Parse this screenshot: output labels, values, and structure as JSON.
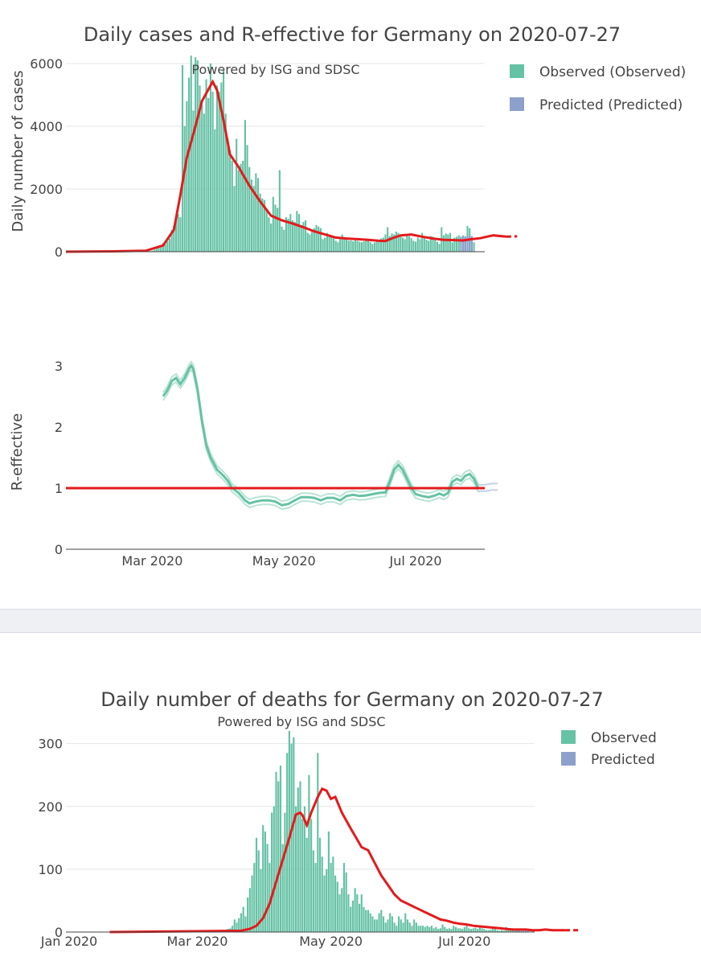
{
  "colors": {
    "observed": "#66c2a5",
    "predicted": "#8da0cb",
    "trend": "#e41a1c",
    "text": "#444444",
    "grid": "#e5e5e5"
  },
  "chart_data": [
    {
      "id": "cases",
      "type": "bar",
      "title": "Daily cases and R-effective for Germany on 2020-07-27",
      "annotation": "Powered by ISG and SDSC",
      "ylabel": "Daily number of cases",
      "ylim": [
        0,
        6000
      ],
      "yticks": [
        "0",
        "2000",
        "4000",
        "6000"
      ],
      "ytick_values": [
        0,
        2000,
        4000,
        6000
      ],
      "x_start": "2020-01-21",
      "x_end": "2020-08-02",
      "legend": [
        {
          "label": "Observed (Observed)",
          "color_key": "observed"
        },
        {
          "label": "Predicted (Predicted)",
          "color_key": "predicted"
        }
      ],
      "observed_start": "2020-01-27",
      "observed": [
        1,
        0,
        1,
        0,
        0,
        0,
        1,
        1,
        0,
        1,
        0,
        0,
        0,
        1,
        0,
        0,
        1,
        0,
        0,
        0,
        0,
        0,
        0,
        0,
        0,
        1,
        0,
        1,
        2,
        3,
        5,
        8,
        12,
        20,
        35,
        60,
        110,
        160,
        200,
        280,
        230,
        330,
        420,
        700,
        820,
        1050,
        1200,
        1100,
        5950,
        4000,
        4800,
        5550,
        6250,
        4500,
        6200,
        6100,
        5300,
        4700,
        4400,
        5500,
        4900,
        6000,
        5100,
        3900,
        5300,
        5100,
        5400,
        5800,
        4400,
        3600,
        3200,
        2900,
        2100,
        3600,
        2600,
        2800,
        2900,
        4200,
        3400,
        2700,
        2300,
        2100,
        2500,
        2350,
        1850,
        1700,
        1650,
        1300,
        1100,
        900,
        1750,
        1500,
        1400,
        2600,
        800,
        700,
        1100,
        1050,
        1200,
        1000,
        950,
        1300,
        1200,
        850,
        950,
        1000,
        600,
        550,
        680,
        750,
        850,
        800,
        750,
        400,
        450,
        600,
        500,
        500,
        450,
        350,
        300,
        400,
        550,
        450,
        400,
        350,
        360,
        330,
        380,
        350,
        320,
        300,
        330,
        380,
        410,
        310,
        250,
        300,
        370,
        380,
        420,
        450,
        550,
        780,
        500,
        580,
        550,
        640,
        600,
        500,
        450,
        400,
        500,
        490,
        430,
        350,
        320,
        450,
        400,
        600,
        500,
        380,
        350,
        500,
        480,
        410,
        320,
        250,
        780,
        520,
        580,
        550,
        600,
        300,
        450,
        480,
        520,
        470,
        520,
        480,
        820,
        750,
        450,
        300
      ],
      "predicted_start": "2020-07-22",
      "predicted": [
        480,
        480,
        490,
        500,
        500,
        500
      ],
      "trend": [
        [
          0,
          0
        ],
        [
          20,
          10
        ],
        [
          37,
          30
        ],
        [
          45,
          200
        ],
        [
          50,
          700
        ],
        [
          53,
          1800
        ],
        [
          56,
          3000
        ],
        [
          60,
          4000
        ],
        [
          63,
          4800
        ],
        [
          67,
          5300
        ],
        [
          68,
          5420
        ],
        [
          70,
          5150
        ],
        [
          73,
          4200
        ],
        [
          76,
          3100
        ],
        [
          80,
          2700
        ],
        [
          85,
          2100
        ],
        [
          90,
          1600
        ],
        [
          95,
          1150
        ],
        [
          100,
          1000
        ],
        [
          105,
          900
        ],
        [
          110,
          780
        ],
        [
          115,
          650
        ],
        [
          120,
          550
        ],
        [
          125,
          450
        ],
        [
          130,
          420
        ],
        [
          135,
          400
        ],
        [
          140,
          380
        ],
        [
          145,
          350
        ],
        [
          148,
          340
        ],
        [
          152,
          450
        ],
        [
          155,
          520
        ],
        [
          160,
          550
        ],
        [
          165,
          480
        ],
        [
          170,
          420
        ],
        [
          175,
          380
        ],
        [
          180,
          370
        ],
        [
          184,
          360
        ],
        [
          188,
          400
        ],
        [
          192,
          430
        ],
        [
          195,
          480
        ],
        [
          198,
          520
        ],
        [
          201,
          500
        ],
        [
          204,
          480
        ]
      ],
      "trend_dashed": [
        [
          204,
          480
        ],
        [
          209,
          490
        ]
      ]
    },
    {
      "id": "reff",
      "type": "line",
      "ylabel": "R-effective",
      "ylim": [
        0,
        3.3
      ],
      "yticks": [
        "0",
        "1",
        "2",
        "3"
      ],
      "ytick_values": [
        0,
        1,
        2,
        3
      ],
      "xticks": [
        "Mar 2020",
        "May 2020",
        "Jul 2020"
      ],
      "xtick_dates": [
        "2020-03-01",
        "2020-05-01",
        "2020-07-01"
      ],
      "x_start": "2020-01-21",
      "x_end": "2020-08-02",
      "reference_line": 1,
      "observed": [
        [
          45,
          2.5
        ],
        [
          47,
          2.6
        ],
        [
          49,
          2.75
        ],
        [
          51,
          2.8
        ],
        [
          53,
          2.7
        ],
        [
          55,
          2.8
        ],
        [
          57,
          2.95
        ],
        [
          58,
          3.0
        ],
        [
          59,
          2.95
        ],
        [
          61,
          2.6
        ],
        [
          63,
          2.1
        ],
        [
          65,
          1.7
        ],
        [
          67,
          1.5
        ],
        [
          70,
          1.3
        ],
        [
          73,
          1.2
        ],
        [
          75,
          1.12
        ],
        [
          77,
          1.0
        ],
        [
          80,
          0.92
        ],
        [
          83,
          0.8
        ],
        [
          85,
          0.75
        ],
        [
          88,
          0.78
        ],
        [
          91,
          0.8
        ],
        [
          94,
          0.8
        ],
        [
          97,
          0.78
        ],
        [
          100,
          0.72
        ],
        [
          103,
          0.74
        ],
        [
          106,
          0.8
        ],
        [
          109,
          0.85
        ],
        [
          112,
          0.85
        ],
        [
          115,
          0.84
        ],
        [
          118,
          0.8
        ],
        [
          121,
          0.84
        ],
        [
          124,
          0.84
        ],
        [
          127,
          0.8
        ],
        [
          130,
          0.87
        ],
        [
          133,
          0.89
        ],
        [
          136,
          0.87
        ],
        [
          139,
          0.88
        ],
        [
          142,
          0.9
        ],
        [
          145,
          0.92
        ],
        [
          148,
          0.93
        ],
        [
          150,
          1.1
        ],
        [
          152,
          1.3
        ],
        [
          154,
          1.38
        ],
        [
          156,
          1.3
        ],
        [
          158,
          1.15
        ],
        [
          160,
          1.0
        ],
        [
          162,
          0.9
        ],
        [
          165,
          0.87
        ],
        [
          168,
          0.85
        ],
        [
          171,
          0.88
        ],
        [
          173,
          0.91
        ],
        [
          175,
          0.88
        ],
        [
          177,
          0.92
        ],
        [
          179,
          1.1
        ],
        [
          181,
          1.15
        ],
        [
          183,
          1.12
        ],
        [
          185,
          1.2
        ],
        [
          187,
          1.23
        ],
        [
          189,
          1.15
        ],
        [
          191,
          1.0
        ]
      ],
      "predicted": [
        [
          191,
          1.0
        ],
        [
          194,
          1.0
        ],
        [
          197,
          1.02
        ],
        [
          200,
          1.02
        ]
      ]
    },
    {
      "id": "deaths",
      "type": "bar",
      "title": "Daily number of deaths for Germany on 2020-07-27",
      "annotation": "Powered by ISG and SDSC",
      "ylim": [
        0,
        320
      ],
      "yticks": [
        "0",
        "100",
        "200",
        "300"
      ],
      "ytick_values": [
        0,
        100,
        200,
        300
      ],
      "xticks": [
        "Jan 2020",
        "Mar 2020",
        "May 2020",
        "Jul 2020"
      ],
      "xtick_dates": [
        "2020-01-01",
        "2020-03-01",
        "2020-05-01",
        "2020-07-01"
      ],
      "x_start": "2020-01-01",
      "x_end": "2020-08-02",
      "legend": [
        {
          "label": "Observed",
          "color_key": "observed"
        },
        {
          "label": "Predicted",
          "color_key": "predicted"
        }
      ],
      "observed_start": "2020-03-10",
      "observed": [
        1,
        1,
        2,
        2,
        3,
        5,
        6,
        10,
        20,
        15,
        22,
        30,
        40,
        25,
        55,
        70,
        90,
        110,
        150,
        130,
        100,
        170,
        160,
        140,
        110,
        190,
        200,
        255,
        240,
        265,
        140,
        190,
        285,
        320,
        300,
        310,
        200,
        230,
        240,
        180,
        200,
        150,
        250,
        180,
        130,
        110,
        285,
        150,
        120,
        90,
        100,
        160,
        110,
        120,
        90,
        80,
        60,
        70,
        110,
        95,
        60,
        40,
        50,
        70,
        60,
        45,
        60,
        40,
        35,
        35,
        30,
        25,
        20,
        20,
        30,
        35,
        25,
        15,
        20,
        30,
        25,
        15,
        10,
        25,
        20,
        15,
        30,
        20,
        15,
        10,
        20,
        15,
        10,
        10,
        10,
        8,
        10,
        8,
        10,
        6,
        8,
        5,
        6,
        12,
        8,
        5,
        6,
        5,
        10,
        8,
        6,
        6,
        5,
        8,
        10,
        6,
        5,
        6,
        7,
        5,
        8,
        6,
        5,
        3,
        3,
        4,
        7,
        5,
        3,
        2,
        3,
        2,
        8,
        3,
        5,
        6,
        4,
        3
      ],
      "predicted_start": "2020-07-25",
      "predicted": [
        3,
        3,
        4,
        4,
        3,
        3
      ],
      "trend": [
        [
          0,
          0
        ],
        [
          60,
          2
        ],
        [
          64,
          5
        ],
        [
          67,
          10
        ],
        [
          70,
          22
        ],
        [
          73,
          45
        ],
        [
          76,
          80
        ],
        [
          79,
          115
        ],
        [
          82,
          150
        ],
        [
          85,
          187
        ],
        [
          87,
          190
        ],
        [
          88,
          186
        ],
        [
          90,
          170
        ],
        [
          92,
          190
        ],
        [
          95,
          215
        ],
        [
          97,
          228
        ],
        [
          99,
          225
        ],
        [
          101,
          212
        ],
        [
          103,
          215
        ],
        [
          106,
          190
        ],
        [
          110,
          165
        ],
        [
          115,
          135
        ],
        [
          118,
          130
        ],
        [
          121,
          110
        ],
        [
          124,
          90
        ],
        [
          127,
          75
        ],
        [
          130,
          60
        ],
        [
          133,
          50
        ],
        [
          136,
          45
        ],
        [
          139,
          40
        ],
        [
          142,
          35
        ],
        [
          145,
          30
        ],
        [
          148,
          25
        ],
        [
          151,
          20
        ],
        [
          154,
          18
        ],
        [
          157,
          15
        ],
        [
          160,
          13
        ],
        [
          163,
          12
        ],
        [
          166,
          10
        ],
        [
          169,
          9
        ],
        [
          172,
          8
        ],
        [
          175,
          7
        ],
        [
          178,
          6
        ],
        [
          181,
          5
        ],
        [
          184,
          4
        ],
        [
          187,
          4
        ],
        [
          190,
          4
        ],
        [
          193,
          3
        ],
        [
          196,
          3
        ],
        [
          199,
          4
        ],
        [
          202,
          3
        ],
        [
          205,
          3
        ],
        [
          208,
          3
        ]
      ],
      "trend_dashed": [
        [
          208,
          3
        ],
        [
          214,
          3
        ]
      ]
    }
  ]
}
